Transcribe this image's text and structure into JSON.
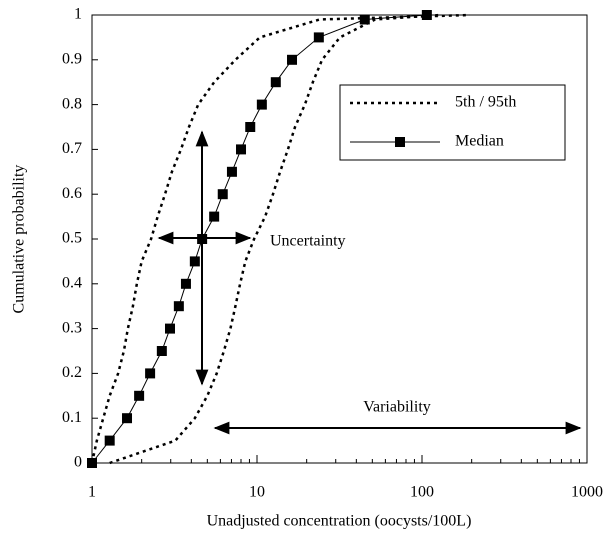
{
  "chart_data": {
    "type": "line",
    "xlabel": "Unadjusted concentration (oocysts/100L)",
    "ylabel": "Cumulative probability",
    "xscale": "log",
    "xlim": [
      1,
      1000
    ],
    "ylim": [
      0,
      1
    ],
    "xticks": [
      1,
      10,
      100,
      1000
    ],
    "yticks": [
      0,
      0.1,
      0.2,
      0.3,
      0.4,
      0.5,
      0.6,
      0.7,
      0.8,
      0.9,
      1
    ],
    "annotations": [
      "Uncertainty",
      "Variability"
    ],
    "legend_position": "upper right",
    "series": [
      {
        "name": "5th / 95th",
        "color": "#000000",
        "style": "dashed",
        "curves": [
          {
            "x": [
              1,
              1.07,
              1.17,
              1.28,
              1.44,
              1.56,
              1.65,
              1.77,
              1.87,
              2.0,
              2.28,
              2.5,
              2.77,
              3.05,
              3.46,
              3.87,
              4.4,
              5.5,
              7.4,
              10.4,
              24,
              195
            ],
            "values": [
              0,
              0.05,
              0.1,
              0.15,
              0.2,
              0.25,
              0.3,
              0.35,
              0.4,
              0.45,
              0.5,
              0.55,
              0.6,
              0.65,
              0.7,
              0.75,
              0.8,
              0.85,
              0.9,
              0.95,
              0.99,
              1
            ]
          },
          {
            "x": [
              1.28,
              3.2,
              4.2,
              5.0,
              5.7,
              6.3,
              6.9,
              7.4,
              7.9,
              8.5,
              9.6,
              11.2,
              12.5,
              13.8,
              15.4,
              17,
              19.5,
              21.8,
              24.8,
              31.8,
              52,
              128
            ],
            "values": [
              0,
              0.05,
              0.1,
              0.15,
              0.2,
              0.25,
              0.3,
              0.35,
              0.4,
              0.45,
              0.5,
              0.55,
              0.6,
              0.65,
              0.7,
              0.75,
              0.8,
              0.85,
              0.9,
              0.95,
              0.99,
              1
            ]
          }
        ]
      },
      {
        "name": "Median",
        "color": "#000000",
        "style": "line-square",
        "curves": [
          {
            "x": [
              1,
              1.28,
              1.63,
              1.93,
              2.25,
              2.65,
              2.97,
              3.36,
              3.71,
              4.2,
              4.65,
              5.5,
              6.2,
              7.05,
              8.0,
              9.1,
              10.7,
              13.0,
              16.3,
              23.7,
              45,
              107
            ],
            "values": [
              0,
              0.05,
              0.1,
              0.15,
              0.2,
              0.25,
              0.3,
              0.35,
              0.4,
              0.45,
              0.5,
              0.55,
              0.6,
              0.65,
              0.7,
              0.75,
              0.8,
              0.85,
              0.9,
              0.95,
              0.99,
              1
            ]
          }
        ]
      }
    ]
  }
}
